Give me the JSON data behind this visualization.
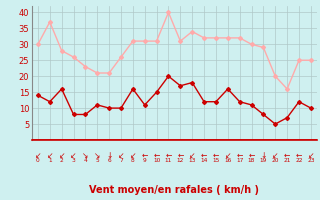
{
  "x": [
    0,
    1,
    2,
    3,
    4,
    5,
    6,
    7,
    8,
    9,
    10,
    11,
    12,
    13,
    14,
    15,
    16,
    17,
    18,
    19,
    20,
    21,
    22,
    23
  ],
  "wind_avg": [
    14,
    12,
    16,
    8,
    8,
    11,
    10,
    10,
    16,
    11,
    15,
    20,
    17,
    18,
    12,
    12,
    16,
    12,
    11,
    8,
    5,
    7,
    12,
    10
  ],
  "wind_gust": [
    30,
    37,
    28,
    26,
    23,
    21,
    21,
    26,
    31,
    31,
    31,
    40,
    31,
    34,
    32,
    32,
    32,
    32,
    30,
    29,
    20,
    16,
    25,
    25
  ],
  "bg_color": "#cff0f0",
  "grid_color": "#b0c8c8",
  "line_avg_color": "#cc0000",
  "line_gust_color": "#ffaaaa",
  "marker_color": "#cc0000",
  "xlabel": "Vent moyen/en rafales ( km/h )",
  "xlabel_color": "#cc0000",
  "tick_color": "#cc0000",
  "spine_color": "#888888",
  "ylim": [
    0,
    42
  ],
  "yticks": [
    5,
    10,
    15,
    20,
    25,
    30,
    35,
    40
  ],
  "arrow_symbols": [
    "↙",
    "↙",
    "↙",
    "↙",
    "↘",
    "↘",
    "↓",
    "↙",
    "↙",
    "←",
    "←",
    "←",
    "←",
    "↙",
    "←",
    "←",
    "↙",
    "←",
    "←",
    "↓",
    "↙",
    "←",
    "←",
    "↙"
  ]
}
